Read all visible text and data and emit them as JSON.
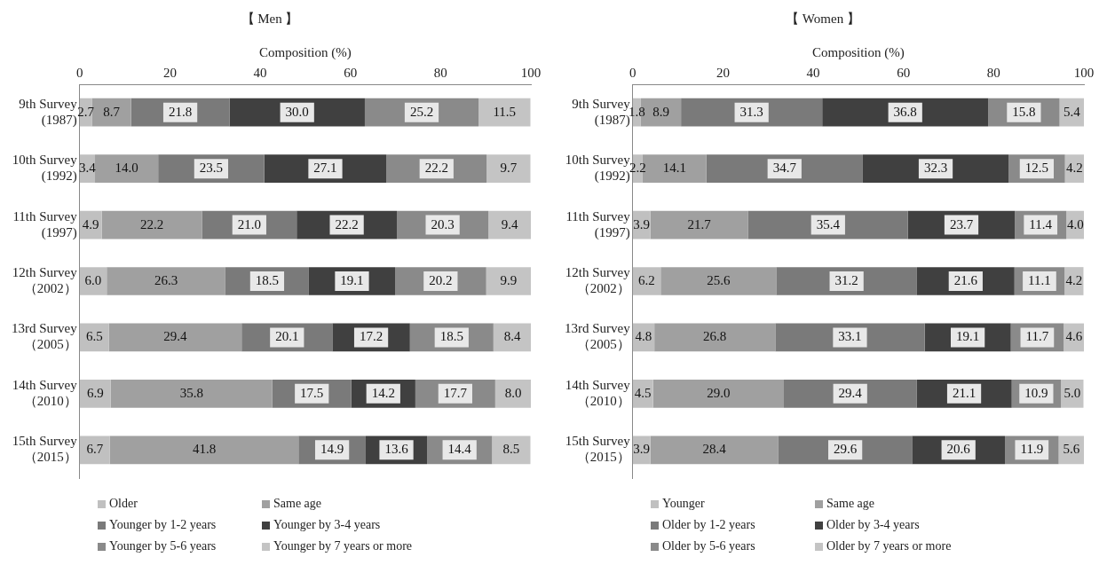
{
  "chart_data": [
    {
      "type": "bar",
      "orientation": "horizontal",
      "stacked": true,
      "title": "【 Men 】",
      "xlabel": "Composition (%)",
      "categories": [
        "9th Survey\n(1987)",
        "10th Survey\n(1992)",
        "11th Survey\n(1997)",
        "12th Survey\n（2002）",
        "13rd Survey\n（2005）",
        "14th Survey\n（2010）",
        "15th Survey\n（2015）"
      ],
      "xlim": [
        0,
        100
      ],
      "xticks": [
        0,
        20,
        40,
        60,
        80,
        100
      ],
      "legend": "bottom",
      "grid": false,
      "series": [
        {
          "name": "Older",
          "color": "#c0c0c0",
          "values": [
            2.7,
            3.4,
            4.9,
            6.0,
            6.5,
            6.9,
            6.7
          ],
          "value_labels": [
            "2.7",
            "3.4",
            "4.9",
            "6.0",
            "6.5",
            "6.9",
            "6.7"
          ]
        },
        {
          "name": "Same age",
          "color": "#a0a0a0",
          "values": [
            8.7,
            14.0,
            22.2,
            26.3,
            29.4,
            35.8,
            41.8
          ],
          "value_labels": [
            "8.7",
            "14.0",
            "22.2",
            "26.3",
            "29.4",
            "35.8",
            "41.8"
          ]
        },
        {
          "name": "Younger by 1-2 years",
          "color": "#7a7a7a",
          "values": [
            21.8,
            23.5,
            21.0,
            18.5,
            20.1,
            17.5,
            14.9
          ],
          "value_labels": [
            "21.8",
            "23.5",
            "21.0",
            "18.5",
            "20.1",
            "17.5",
            "14.9"
          ]
        },
        {
          "name": "Younger by 3-4 years",
          "color": "#404040",
          "values": [
            30.0,
            27.1,
            22.2,
            19.1,
            17.2,
            14.2,
            13.6
          ],
          "value_labels": [
            "30.0",
            "27.1",
            "22.2",
            "19.1",
            "17.2",
            "14.2",
            "13.6"
          ]
        },
        {
          "name": "Younger by 5-6 years",
          "color": "#8a8a8a",
          "values": [
            25.2,
            22.2,
            20.3,
            20.2,
            18.5,
            17.7,
            14.4
          ],
          "value_labels": [
            "25.2",
            "22.2",
            "20.3",
            "20.2",
            "18.5",
            "17.7",
            "14.4"
          ]
        },
        {
          "name": "Younger by 7 years or more",
          "color": "#c4c4c4",
          "values": [
            11.5,
            9.7,
            9.4,
            9.9,
            8.4,
            8.0,
            8.5
          ],
          "value_labels": [
            "11.5",
            "9.7",
            "9.4",
            "9.9",
            "8.4",
            "8.0",
            "8.5"
          ]
        }
      ]
    },
    {
      "type": "bar",
      "orientation": "horizontal",
      "stacked": true,
      "title": "【 Women 】",
      "xlabel": "Composition (%)",
      "categories": [
        "9th Survey\n(1987)",
        "10th Survey\n(1992)",
        "11th Survey\n(1997)",
        "12th Survey\n（2002）",
        "13rd Survey\n（2005）",
        "14th Survey\n（2010）",
        "15th Survey\n（2015）"
      ],
      "xlim": [
        0,
        100
      ],
      "xticks": [
        0,
        20,
        40,
        60,
        80,
        100
      ],
      "legend": "bottom",
      "grid": false,
      "series": [
        {
          "name": "Younger",
          "color": "#c0c0c0",
          "values": [
            1.8,
            2.2,
            3.9,
            6.2,
            4.8,
            4.5,
            3.9
          ],
          "value_labels": [
            "1.8",
            "2.2",
            "3.9",
            "6.2",
            "4.8",
            "4.5",
            "3.9"
          ]
        },
        {
          "name": "Same age",
          "color": "#a0a0a0",
          "values": [
            8.9,
            14.1,
            21.7,
            25.6,
            26.8,
            29.0,
            28.4
          ],
          "value_labels": [
            "8.9",
            "14.1",
            "21.7",
            "25.6",
            "26.8",
            "29.0",
            "28.4"
          ]
        },
        {
          "name": "Older by 1-2 years",
          "color": "#7a7a7a",
          "values": [
            31.3,
            34.7,
            35.4,
            31.2,
            33.1,
            29.4,
            29.6
          ],
          "value_labels": [
            "31.3",
            "34.7",
            "35.4",
            "31.2",
            "33.1",
            "29.4",
            "29.6"
          ]
        },
        {
          "name": "Older by 3-4 years",
          "color": "#404040",
          "values": [
            36.8,
            32.3,
            23.7,
            21.6,
            19.1,
            21.1,
            20.6
          ],
          "value_labels": [
            "36.8",
            "32.3",
            "23.7",
            "21.6",
            "19.1",
            "21.1",
            "20.6"
          ]
        },
        {
          "name": "Older by 5-6 years",
          "color": "#8a8a8a",
          "values": [
            15.8,
            12.5,
            11.4,
            11.1,
            11.7,
            10.9,
            11.9
          ],
          "value_labels": [
            "15.8",
            "12.5",
            "11.4",
            "11.1",
            "11.7",
            "10.9",
            "11.9"
          ]
        },
        {
          "name": "Older by 7 years or more",
          "color": "#c4c4c4",
          "values": [
            5.4,
            4.2,
            4.0,
            4.2,
            4.6,
            5.0,
            5.6
          ],
          "value_labels": [
            "5.4",
            "4.2",
            "4.0",
            "4.2",
            "4.6",
            "5.0",
            "5.6"
          ]
        }
      ]
    }
  ]
}
